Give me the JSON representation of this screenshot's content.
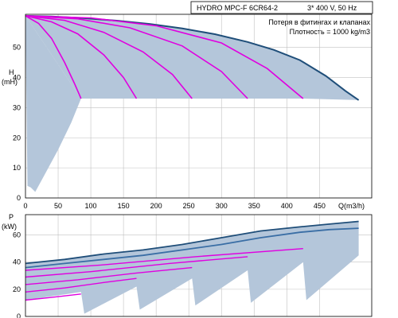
{
  "header": {
    "model": "HYDRO MPC-F 6CR64-2",
    "supply": "3* 400 V, 50 Hz",
    "note_losses": "Потеря в фитингах и клапанах",
    "note_density": "Плотность = 1000 kg/m3"
  },
  "colors": {
    "max_curve": "#1f4e79",
    "min_curve": "#3a6ea5",
    "pump_curves": "#e000e0",
    "area_fill": "#b4c6da",
    "grid": "#c0c0c0"
  },
  "chart_data": [
    {
      "type": "line",
      "chart": "head",
      "ylabel_symbol": "H",
      "ylabel_unit": "(mH)",
      "xlabel": "Q(m3/h)",
      "xlim": [
        0,
        530
      ],
      "ylim": [
        0,
        61
      ],
      "xticks": [
        0,
        50,
        100,
        150,
        200,
        250,
        300,
        350,
        400,
        450
      ],
      "xtick_labels": [
        "0",
        "50",
        "100",
        "150",
        "200",
        "250",
        "300",
        "350",
        "400",
        "450"
      ],
      "yticks": [
        0,
        10,
        20,
        30,
        40,
        50
      ],
      "ytick_labels": [
        "0",
        "10",
        "20",
        "30",
        "40",
        "50"
      ],
      "grid": true,
      "area": {
        "outer": [
          [
            0,
            60.5
          ],
          [
            40,
            60.3
          ],
          [
            90,
            59.7
          ],
          [
            140,
            58.9
          ],
          [
            190,
            57.8
          ],
          [
            240,
            56.3
          ],
          [
            290,
            54.4
          ],
          [
            340,
            51.8
          ],
          [
            380,
            49.2
          ],
          [
            420,
            45.8
          ],
          [
            460,
            40.5
          ],
          [
            490,
            35.5
          ],
          [
            510,
            32.5
          ]
        ],
        "inner": [
          [
            85,
            33
          ],
          [
            170,
            33
          ],
          [
            255,
            33
          ],
          [
            340,
            33
          ],
          [
            425,
            33
          ],
          [
            510,
            32.5
          ]
        ],
        "bottom": [
          [
            0,
            60.5
          ],
          [
            3,
            4
          ],
          [
            8,
            3.5
          ],
          [
            15,
            2
          ],
          [
            30,
            8
          ],
          [
            50,
            16
          ],
          [
            70,
            25
          ],
          [
            85,
            33
          ]
        ]
      },
      "series": [
        {
          "role": "max",
          "values": [
            [
              0,
              60.5
            ],
            [
              40,
              60.3
            ],
            [
              90,
              59.7
            ],
            [
              140,
              58.9
            ],
            [
              190,
              57.8
            ],
            [
              240,
              56.3
            ],
            [
              290,
              54.4
            ],
            [
              340,
              51.8
            ],
            [
              380,
              49.2
            ],
            [
              420,
              45.8
            ],
            [
              460,
              40.5
            ],
            [
              490,
              35.5
            ],
            [
              510,
              32.5
            ]
          ]
        },
        {
          "role": "pump-1",
          "values": [
            [
              0,
              60.5
            ],
            [
              20,
              58
            ],
            [
              40,
              53
            ],
            [
              60,
              45
            ],
            [
              75,
              38
            ],
            [
              85,
              33
            ]
          ]
        },
        {
          "role": "pump-2",
          "values": [
            [
              0,
              60.5
            ],
            [
              40,
              58.5
            ],
            [
              80,
              54.5
            ],
            [
              120,
              47.5
            ],
            [
              150,
              40
            ],
            [
              170,
              33
            ]
          ]
        },
        {
          "role": "pump-3",
          "values": [
            [
              0,
              60.5
            ],
            [
              60,
              59
            ],
            [
              120,
              55
            ],
            [
              180,
              48.5
            ],
            [
              225,
              41
            ],
            [
              255,
              33
            ]
          ]
        },
        {
          "role": "pump-4",
          "values": [
            [
              0,
              60.5
            ],
            [
              80,
              59.5
            ],
            [
              160,
              56.5
            ],
            [
              240,
              50.5
            ],
            [
              300,
              42
            ],
            [
              340,
              33
            ]
          ]
        },
        {
          "role": "pump-5",
          "values": [
            [
              0,
              60.5
            ],
            [
              100,
              59.8
            ],
            [
              200,
              57.2
            ],
            [
              300,
              51.5
            ],
            [
              370,
              43
            ],
            [
              425,
              33
            ]
          ]
        }
      ]
    },
    {
      "type": "line",
      "chart": "power",
      "ylabel_symbol": "P",
      "ylabel_unit": "(kW)",
      "xlim": [
        0,
        530
      ],
      "ylim": [
        0,
        75
      ],
      "yticks": [
        0,
        20,
        40,
        60
      ],
      "ytick_labels": [
        "0",
        "20",
        "40",
        "60"
      ],
      "xticks": [
        0,
        50,
        100,
        150,
        200,
        250,
        300,
        350,
        400,
        450
      ],
      "grid": true,
      "area": {
        "top": [
          [
            0,
            39
          ],
          [
            60,
            42
          ],
          [
            120,
            46
          ],
          [
            180,
            49
          ],
          [
            240,
            53
          ],
          [
            300,
            58
          ],
          [
            360,
            63
          ],
          [
            420,
            66
          ],
          [
            465,
            68
          ],
          [
            510,
            70
          ]
        ],
        "low": [
          [
            0,
            36
          ],
          [
            60,
            39
          ],
          [
            120,
            42
          ],
          [
            180,
            45
          ],
          [
            240,
            49
          ],
          [
            300,
            53
          ],
          [
            360,
            58
          ],
          [
            420,
            62
          ],
          [
            465,
            64
          ],
          [
            510,
            65
          ]
        ],
        "steps": [
          [
            0,
            12
          ],
          [
            85,
            18
          ],
          [
            90,
            2
          ],
          [
            170,
            22
          ],
          [
            175,
            5
          ],
          [
            255,
            28
          ],
          [
            260,
            8
          ],
          [
            340,
            34
          ],
          [
            345,
            10
          ],
          [
            425,
            40
          ],
          [
            430,
            12
          ],
          [
            510,
            45
          ],
          [
            510,
            0
          ]
        ]
      },
      "series": [
        {
          "role": "max",
          "values": [
            [
              0,
              39
            ],
            [
              60,
              42
            ],
            [
              120,
              46
            ],
            [
              180,
              49
            ],
            [
              240,
              53
            ],
            [
              300,
              58
            ],
            [
              360,
              63
            ],
            [
              420,
              66
            ],
            [
              465,
              68
            ],
            [
              510,
              70
            ]
          ]
        },
        {
          "role": "min",
          "values": [
            [
              0,
              36
            ],
            [
              60,
              39
            ],
            [
              120,
              42
            ],
            [
              180,
              45
            ],
            [
              240,
              49
            ],
            [
              300,
              53
            ],
            [
              360,
              58
            ],
            [
              420,
              62
            ],
            [
              465,
              64
            ],
            [
              510,
              65
            ]
          ]
        },
        {
          "role": "pump-1",
          "values": [
            [
              0,
              12
            ],
            [
              40,
              14
            ],
            [
              85,
              16.5
            ]
          ]
        },
        {
          "role": "pump-2",
          "values": [
            [
              0,
              18
            ],
            [
              60,
              21
            ],
            [
              120,
              25
            ],
            [
              170,
              28
            ]
          ]
        },
        {
          "role": "pump-3",
          "values": [
            [
              0,
              23.5
            ],
            [
              80,
              27
            ],
            [
              170,
              32
            ],
            [
              255,
              36
            ]
          ]
        },
        {
          "role": "pump-4",
          "values": [
            [
              0,
              29
            ],
            [
              100,
              33
            ],
            [
              220,
              39
            ],
            [
              340,
              44
            ]
          ]
        },
        {
          "role": "pump-5",
          "values": [
            [
              0,
              34
            ],
            [
              120,
              38
            ],
            [
              260,
              44
            ],
            [
              425,
              50
            ]
          ]
        }
      ]
    }
  ]
}
